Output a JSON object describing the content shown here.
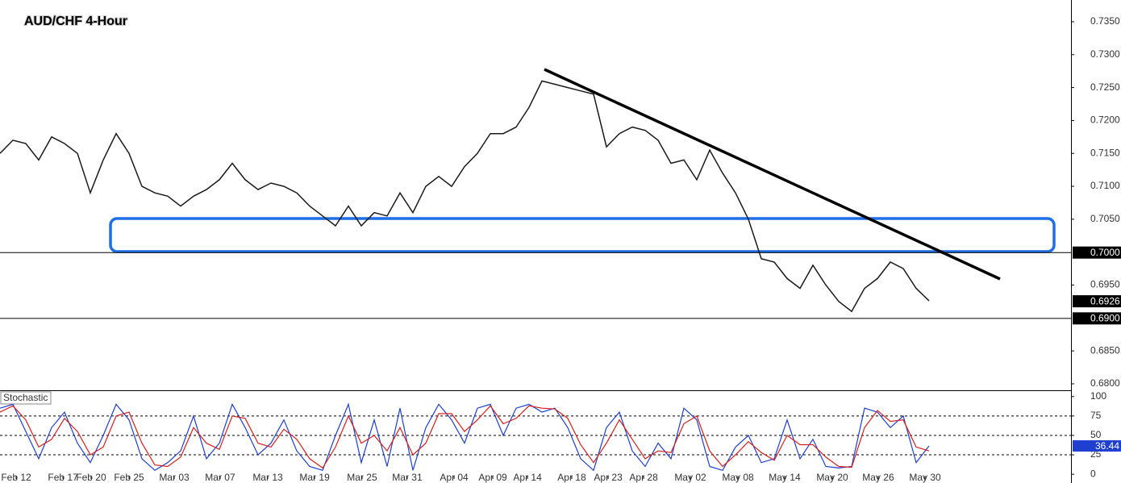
{
  "chart_data": [
    {
      "type": "line",
      "title": "AUD/CHF 4-Hour",
      "x": [
        0,
        1,
        2,
        3,
        4,
        5,
        6,
        7,
        8,
        9,
        10,
        11,
        12,
        13,
        14,
        15,
        16,
        17,
        18,
        19,
        20,
        21,
        22,
        23,
        24,
        25,
        26,
        27,
        28,
        29,
        30,
        31,
        32,
        33,
        34,
        35,
        36,
        37,
        38,
        39,
        40,
        41,
        42,
        43,
        44,
        45,
        46,
        47,
        48,
        49,
        50,
        51,
        52,
        53,
        54,
        55,
        56,
        57,
        58,
        59,
        60,
        61,
        62,
        63,
        64,
        65,
        66,
        67,
        68,
        69,
        70,
        71,
        72
      ],
      "series": [
        {
          "color": "#1b1b1b",
          "values": [
            0.715,
            0.717,
            0.7165,
            0.714,
            0.7175,
            0.7165,
            0.715,
            0.709,
            0.714,
            0.718,
            0.715,
            0.71,
            0.709,
            0.7085,
            0.707,
            0.7085,
            0.7095,
            0.711,
            0.7135,
            0.711,
            0.7095,
            0.7105,
            0.71,
            0.709,
            0.707,
            0.7055,
            0.704,
            0.707,
            0.704,
            0.706,
            0.7055,
            0.709,
            0.706,
            0.71,
            0.7115,
            0.71,
            0.713,
            0.715,
            0.718,
            0.718,
            0.719,
            0.722,
            0.726,
            0.7255,
            0.725,
            0.7245,
            0.724,
            0.716,
            0.718,
            0.719,
            0.7185,
            0.717,
            0.7135,
            0.714,
            0.711,
            0.7155,
            0.712,
            0.709,
            0.705,
            0.699,
            0.6985,
            0.696,
            0.6945,
            0.698,
            0.695,
            0.6925,
            0.691,
            0.6945,
            0.696,
            0.6985,
            0.6975,
            0.6945,
            0.6926
          ]
        }
      ],
      "xlim": [
        0,
        83
      ],
      "xticks": [
        {
          "value": 1.25,
          "label": "Feb 12"
        },
        {
          "value": 4.88,
          "label": "Feb 17"
        },
        {
          "value": 7.06,
          "label": "Feb 20"
        },
        {
          "value": 10,
          "label": "Feb 25"
        },
        {
          "value": 13.5,
          "label": "Mar 03"
        },
        {
          "value": 17.06,
          "label": "Mar 07"
        },
        {
          "value": 20.75,
          "label": "Mar 13"
        },
        {
          "value": 24.38,
          "label": "Mar 19"
        },
        {
          "value": 28.06,
          "label": "Mar 25"
        },
        {
          "value": 31.56,
          "label": "Mar 31"
        },
        {
          "value": 35.19,
          "label": "Apr 04"
        },
        {
          "value": 38.19,
          "label": "Apr 09"
        },
        {
          "value": 40.88,
          "label": "Apr 14"
        },
        {
          "value": 44.31,
          "label": "Apr 18"
        },
        {
          "value": 47.13,
          "label": "Apr 23"
        },
        {
          "value": 49.88,
          "label": "Apr 28"
        },
        {
          "value": 53.5,
          "label": "May 02"
        },
        {
          "value": 57.19,
          "label": "May 08"
        },
        {
          "value": 60.81,
          "label": "May 14"
        },
        {
          "value": 64.5,
          "label": "May 20"
        },
        {
          "value": 68.06,
          "label": "May 26"
        },
        {
          "value": 71.69,
          "label": "May 30"
        }
      ],
      "ylim": [
        0.67902,
        0.7383
      ],
      "yticks": [
        {
          "value": 0.735,
          "label": "0.7350"
        },
        {
          "value": 0.73,
          "label": "0.7300"
        },
        {
          "value": 0.725,
          "label": "0.7250"
        },
        {
          "value": 0.72,
          "label": "0.7200"
        },
        {
          "value": 0.715,
          "label": "0.7150"
        },
        {
          "value": 0.71,
          "label": "0.7100"
        },
        {
          "value": 0.705,
          "label": "0.7050"
        },
        {
          "value": 0.695,
          "label": "0.6950"
        },
        {
          "value": 0.685,
          "label": "0.6850"
        },
        {
          "value": 0.68,
          "label": "0.6800"
        }
      ],
      "levels": [
        {
          "value": 0.7,
          "label": "0.7000"
        },
        {
          "value": 0.69,
          "label": "0.6900"
        }
      ],
      "last": 0.6926
    },
    {
      "type": "stochastic",
      "title": "Stochastic",
      "series": [
        {
          "color": "#1f3fd0",
          "values": [
            85,
            90,
            55,
            20,
            60,
            80,
            40,
            15,
            50,
            90,
            70,
            20,
            5,
            15,
            30,
            75,
            20,
            40,
            90,
            60,
            25,
            40,
            70,
            30,
            10,
            5,
            50,
            90,
            15,
            70,
            10,
            85,
            5,
            60,
            90,
            70,
            40,
            85,
            90,
            50,
            85,
            90,
            80,
            85,
            60,
            20,
            5,
            60,
            80,
            30,
            10,
            40,
            20,
            85,
            70,
            10,
            5,
            35,
            50,
            15,
            20,
            70,
            20,
            45,
            10,
            8,
            10,
            85,
            80,
            60,
            75,
            15,
            36.44
          ]
        },
        {
          "color": "#d42020",
          "values": [
            80,
            88,
            70,
            35,
            45,
            72,
            55,
            25,
            35,
            75,
            80,
            40,
            12,
            10,
            22,
            60,
            40,
            32,
            75,
            72,
            40,
            35,
            58,
            45,
            20,
            8,
            35,
            75,
            40,
            50,
            30,
            60,
            25,
            40,
            78,
            78,
            55,
            70,
            88,
            65,
            72,
            88,
            85,
            84,
            72,
            38,
            15,
            40,
            70,
            45,
            20,
            30,
            28,
            65,
            75,
            30,
            10,
            25,
            42,
            28,
            18,
            50,
            38,
            38,
            22,
            10,
            9,
            60,
            82,
            68,
            70,
            35,
            30
          ]
        }
      ],
      "ylim": [
        -4,
        106
      ],
      "yticks": [
        100,
        75,
        50,
        25,
        0
      ],
      "levels": [
        75,
        50,
        25
      ],
      "last": 36.44
    }
  ]
}
